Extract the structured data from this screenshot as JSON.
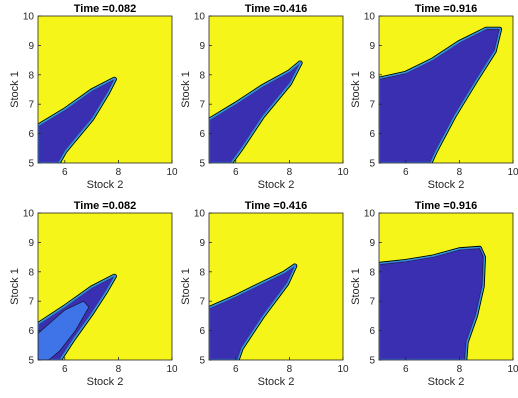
{
  "chart_data": [
    {
      "type": "contour",
      "title": "Time =0.082",
      "xlabel": "Stock 2",
      "ylabel": "Stock 1",
      "xlim": [
        5,
        10
      ],
      "ylim": [
        5,
        10
      ],
      "xticks": [
        "6",
        "8",
        "10"
      ],
      "yticks": [
        "5",
        "6",
        "7",
        "8",
        "9",
        "10"
      ],
      "background_color": "#f5f51a",
      "region_color": "#3a2fb0",
      "region_boundary": [
        [
          5,
          5
        ],
        [
          5,
          6.25
        ],
        [
          6,
          6.8
        ],
        [
          7,
          7.45
        ],
        [
          7.85,
          7.85
        ],
        [
          7.6,
          7.4
        ],
        [
          7,
          6.5
        ],
        [
          6,
          5.4
        ],
        [
          5.75,
          5
        ]
      ]
    },
    {
      "type": "contour",
      "title": "Time =0.416",
      "xlabel": "Stock 2",
      "ylabel": "Stock 1",
      "xlim": [
        5,
        10
      ],
      "ylim": [
        5,
        10
      ],
      "xticks": [
        "6",
        "8",
        "10"
      ],
      "yticks": [
        "5",
        "6",
        "7",
        "8",
        "9",
        "10"
      ],
      "background_color": "#f5f51a",
      "region_color": "#3a2fb0",
      "region_boundary": [
        [
          5,
          5
        ],
        [
          5,
          6.45
        ],
        [
          6,
          7
        ],
        [
          7,
          7.6
        ],
        [
          8,
          8.1
        ],
        [
          8.4,
          8.4
        ],
        [
          8,
          7.7
        ],
        [
          7,
          6.6
        ],
        [
          6.2,
          5.5
        ],
        [
          5.8,
          5
        ]
      ]
    },
    {
      "type": "contour",
      "title": "Time =0.916",
      "xlabel": "Stock 2",
      "ylabel": "Stock 1",
      "xlim": [
        5,
        10
      ],
      "ylim": [
        5,
        10
      ],
      "xticks": [
        "6",
        "8",
        "10"
      ],
      "yticks": [
        "5",
        "6",
        "7",
        "8",
        "9",
        "10"
      ],
      "background_color": "#f5f51a",
      "region_color": "#3a2fb0",
      "region_boundary": [
        [
          5,
          5
        ],
        [
          5,
          7.85
        ],
        [
          6,
          8.05
        ],
        [
          7,
          8.5
        ],
        [
          8,
          9.1
        ],
        [
          9,
          9.55
        ],
        [
          9.5,
          9.55
        ],
        [
          9.3,
          8.8
        ],
        [
          8.6,
          7.8
        ],
        [
          7.8,
          6.6
        ],
        [
          7.1,
          5.4
        ],
        [
          6.9,
          5
        ]
      ]
    },
    {
      "type": "contour",
      "title": "Time =0.082",
      "xlabel": "Stock 2",
      "ylabel": "Stock 1",
      "xlim": [
        5,
        10
      ],
      "ylim": [
        5,
        10
      ],
      "xticks": [
        "6",
        "8",
        "10"
      ],
      "yticks": [
        "5",
        "6",
        "7",
        "8",
        "9",
        "10"
      ],
      "background_color": "#f5f51a",
      "region_color": "#3a2fb0",
      "region_boundary": [
        [
          5,
          5
        ],
        [
          5,
          6.2
        ],
        [
          6,
          6.8
        ],
        [
          7,
          7.45
        ],
        [
          7.85,
          7.85
        ],
        [
          7.5,
          7.3
        ],
        [
          7,
          6.6
        ],
        [
          6.3,
          5.7
        ],
        [
          5.8,
          5
        ]
      ],
      "inner_region": [
        [
          5,
          5
        ],
        [
          5,
          5.9
        ],
        [
          6,
          6.7
        ],
        [
          6.7,
          7
        ],
        [
          6.9,
          6.8
        ],
        [
          6.4,
          6
        ],
        [
          5.8,
          5.3
        ],
        [
          5.4,
          5
        ]
      ]
    },
    {
      "type": "contour",
      "title": "Time =0.416",
      "xlabel": "Stock 2",
      "ylabel": "Stock 1",
      "xlim": [
        5,
        10
      ],
      "ylim": [
        5,
        10
      ],
      "xticks": [
        "6",
        "8",
        "10"
      ],
      "yticks": [
        "5",
        "6",
        "7",
        "8",
        "9",
        "10"
      ],
      "background_color": "#f5f51a",
      "region_color": "#3a2fb0",
      "region_boundary": [
        [
          5,
          5
        ],
        [
          5,
          6.75
        ],
        [
          6,
          7.15
        ],
        [
          7,
          7.6
        ],
        [
          7.8,
          7.95
        ],
        [
          8.2,
          8.2
        ],
        [
          7.9,
          7.6
        ],
        [
          7,
          6.5
        ],
        [
          6.2,
          5.4
        ],
        [
          6.05,
          5
        ]
      ]
    },
    {
      "type": "contour",
      "title": "Time =0.916",
      "xlabel": "Stock 2",
      "ylabel": "Stock 1",
      "xlim": [
        5,
        10
      ],
      "ylim": [
        5,
        10
      ],
      "xticks": [
        "6",
        "8",
        "10"
      ],
      "yticks": [
        "5",
        "6",
        "7",
        "8",
        "9",
        "10"
      ],
      "background_color": "#f5f51a",
      "region_color": "#3a2fb0",
      "region_boundary": [
        [
          5,
          5
        ],
        [
          5,
          8.25
        ],
        [
          6,
          8.35
        ],
        [
          7,
          8.5
        ],
        [
          8,
          8.75
        ],
        [
          8.75,
          8.8
        ],
        [
          8.9,
          8.5
        ],
        [
          8.85,
          7.5
        ],
        [
          8.6,
          6.5
        ],
        [
          8.25,
          5.6
        ],
        [
          8.2,
          5
        ]
      ]
    }
  ]
}
